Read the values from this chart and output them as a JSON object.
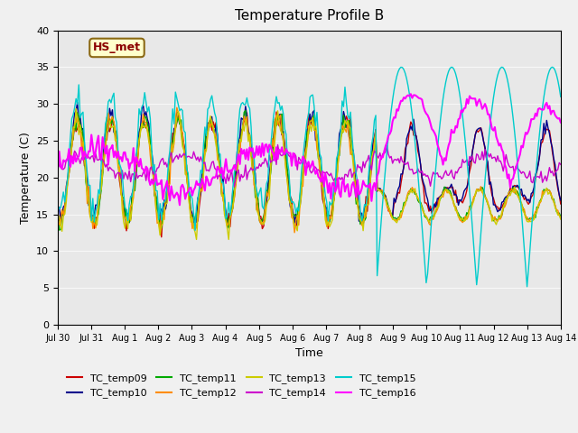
{
  "title": "Temperature Profile B",
  "xlabel": "Time",
  "ylabel": "Temperature (C)",
  "ylim": [
    0,
    40
  ],
  "series_names": [
    "TC_temp09",
    "TC_temp10",
    "TC_temp11",
    "TC_temp12",
    "TC_temp13",
    "TC_temp14",
    "TC_temp15",
    "TC_temp16"
  ],
  "series_colors": [
    "#cc0000",
    "#00008b",
    "#00aa00",
    "#ff8c00",
    "#cccc00",
    "#cc00cc",
    "#00cccc",
    "#ff00ff"
  ],
  "annotation_text": "HS_met",
  "annotation_color": "#8b0000",
  "annotation_bg": "#ffffcc",
  "background_color": "#e8e8e8",
  "tick_labels": [
    "Jul 30",
    "Jul 31",
    "Aug 1",
    "Aug 2",
    "Aug 3",
    "Aug 4",
    "Aug 5",
    "Aug 6",
    "Aug 7",
    "Aug 8",
    "Aug 9",
    "Aug 10",
    "Aug 11",
    "Aug 12",
    "Aug 13",
    "Aug 14"
  ],
  "n_points": 360
}
